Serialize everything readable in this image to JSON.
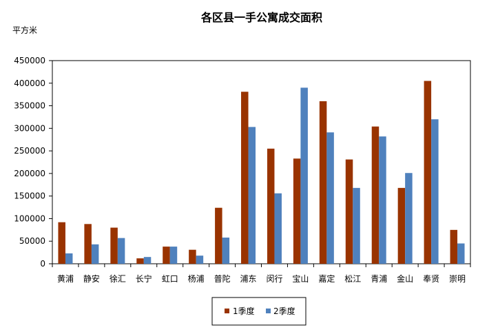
{
  "chart_data": {
    "type": "bar",
    "title": "各区县一手公寓成交面积",
    "ylabel": "平方米",
    "xlabel": "",
    "ylim": [
      0,
      450000
    ],
    "yticks": [
      0,
      50000,
      100000,
      150000,
      200000,
      250000,
      300000,
      350000,
      400000,
      450000
    ],
    "categories": [
      "黄浦",
      "静安",
      "徐汇",
      "长宁",
      "虹口",
      "杨浦",
      "普陀",
      "浦东",
      "闵行",
      "宝山",
      "嘉定",
      "松江",
      "青浦",
      "金山",
      "奉贤",
      "崇明"
    ],
    "series": [
      {
        "name": "1季度",
        "color": "#993300",
        "values": [
          92000,
          88000,
          80000,
          12000,
          38000,
          31000,
          124000,
          381000,
          255000,
          233000,
          360000,
          231000,
          304000,
          168000,
          405000,
          75000
        ]
      },
      {
        "name": "2季度",
        "color": "#4F81BD",
        "values": [
          23000,
          43000,
          57000,
          15000,
          38000,
          18000,
          58000,
          303000,
          156000,
          390000,
          291000,
          168000,
          282000,
          201000,
          320000,
          45000
        ]
      }
    ],
    "grid": false,
    "legend": "bottom-center"
  }
}
